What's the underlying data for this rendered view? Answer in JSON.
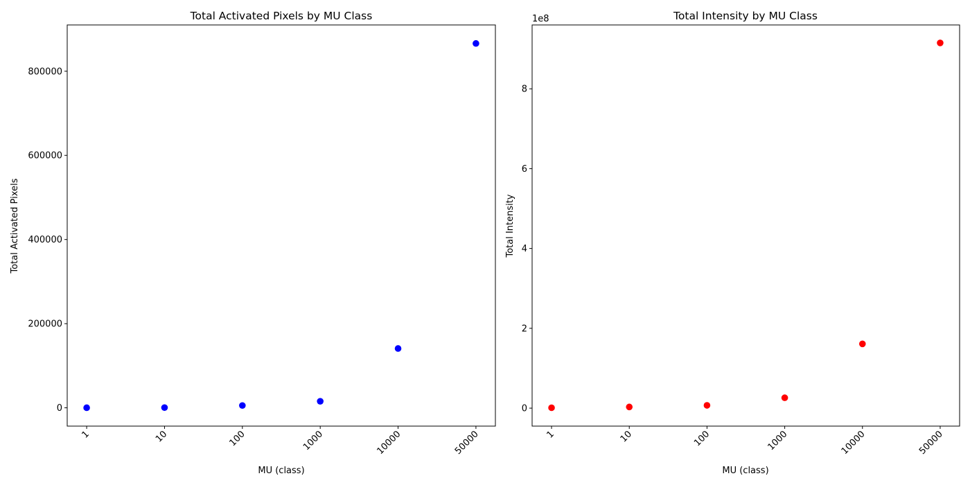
{
  "chart_data": [
    {
      "type": "scatter",
      "title": "Total Activated Pixels by MU Class",
      "xlabel": "MU (class)",
      "ylabel": "Total Activated Pixels",
      "categories": [
        "1",
        "10",
        "100",
        "1000",
        "10000",
        "50000"
      ],
      "values": [
        200,
        500,
        5500,
        15500,
        141000,
        866000
      ],
      "yticks": [
        0,
        200000,
        400000,
        600000,
        800000
      ],
      "ytick_labels": [
        "0",
        "200000",
        "400000",
        "600000",
        "800000"
      ],
      "y_offset_label": "",
      "ylim": [
        -43500,
        910000
      ],
      "x_tick_rotation": -45,
      "color": "#0000ff",
      "grid": false,
      "legend": "none"
    },
    {
      "type": "scatter",
      "title": "Total Intensity by MU Class",
      "xlabel": "MU (class)",
      "ylabel": "Total Intensity",
      "categories": [
        "1",
        "10",
        "100",
        "1000",
        "10000",
        "50000"
      ],
      "values": [
        1000000,
        3000000,
        7000000,
        26000000,
        161000000,
        915000000
      ],
      "yticks": [
        0,
        200000000,
        400000000,
        600000000,
        800000000
      ],
      "ytick_labels": [
        "0",
        "2",
        "4",
        "6",
        "8"
      ],
      "y_offset_label": "1e8",
      "ylim": [
        -45000000,
        960000000
      ],
      "x_tick_rotation": -45,
      "color": "#ff0000",
      "grid": false,
      "legend": "none"
    }
  ]
}
